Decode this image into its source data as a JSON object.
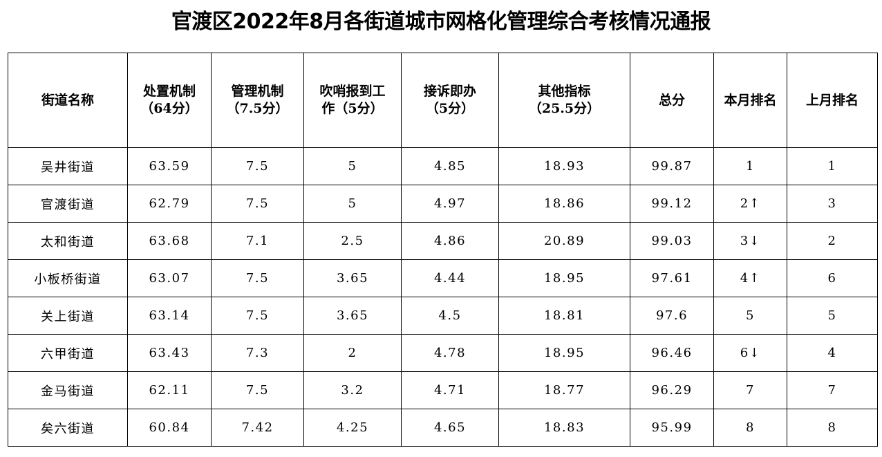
{
  "title": "官渡区2022年8月各街道城市网格化管理综合考核情况通报",
  "headers": [
    {
      "line1": "街道名称",
      "line2": ""
    },
    {
      "line1": "处置机制",
      "line2": "（64分）"
    },
    {
      "line1": "管理机制",
      "line2": "（7.5分）"
    },
    {
      "line1": "吹哨报到工",
      "line2": "作（5分）"
    },
    {
      "line1": "接诉即办",
      "line2": "（5分）"
    },
    {
      "line1": "其他指标",
      "line2": "（25.5分）"
    },
    {
      "line1": "总分",
      "line2": ""
    },
    {
      "line1": "本月排名",
      "line2": ""
    },
    {
      "line1": "上月排名",
      "line2": ""
    }
  ],
  "rows": [
    [
      "吴井街道",
      "63.59",
      "7.5",
      "5",
      "4.85",
      "18.93",
      "99.87",
      "1",
      "1"
    ],
    [
      "官渡街道",
      "62.79",
      "7.5",
      "5",
      "4.97",
      "18.86",
      "99.12",
      "2↑",
      "3"
    ],
    [
      "太和街道",
      "63.68",
      "7.1",
      "2.5",
      "4.86",
      "20.89",
      "99.03",
      "3↓",
      "2"
    ],
    [
      "小板桥街道",
      "63.07",
      "7.5",
      "3.65",
      "4.44",
      "18.95",
      "97.61",
      "4↑",
      "6"
    ],
    [
      "关上街道",
      "63.14",
      "7.5",
      "3.65",
      "4.5",
      "18.81",
      "97.6",
      "5",
      "5"
    ],
    [
      "六甲街道",
      "63.43",
      "7.3",
      "2",
      "4.78",
      "18.95",
      "96.46",
      "6↓",
      "4"
    ],
    [
      "金马街道",
      "62.11",
      "7.5",
      "3.2",
      "4.71",
      "18.77",
      "96.29",
      "7",
      "7"
    ],
    [
      "矣六街道",
      "60.84",
      "7.42",
      "4.25",
      "4.65",
      "18.83",
      "95.99",
      "8",
      "8"
    ]
  ]
}
